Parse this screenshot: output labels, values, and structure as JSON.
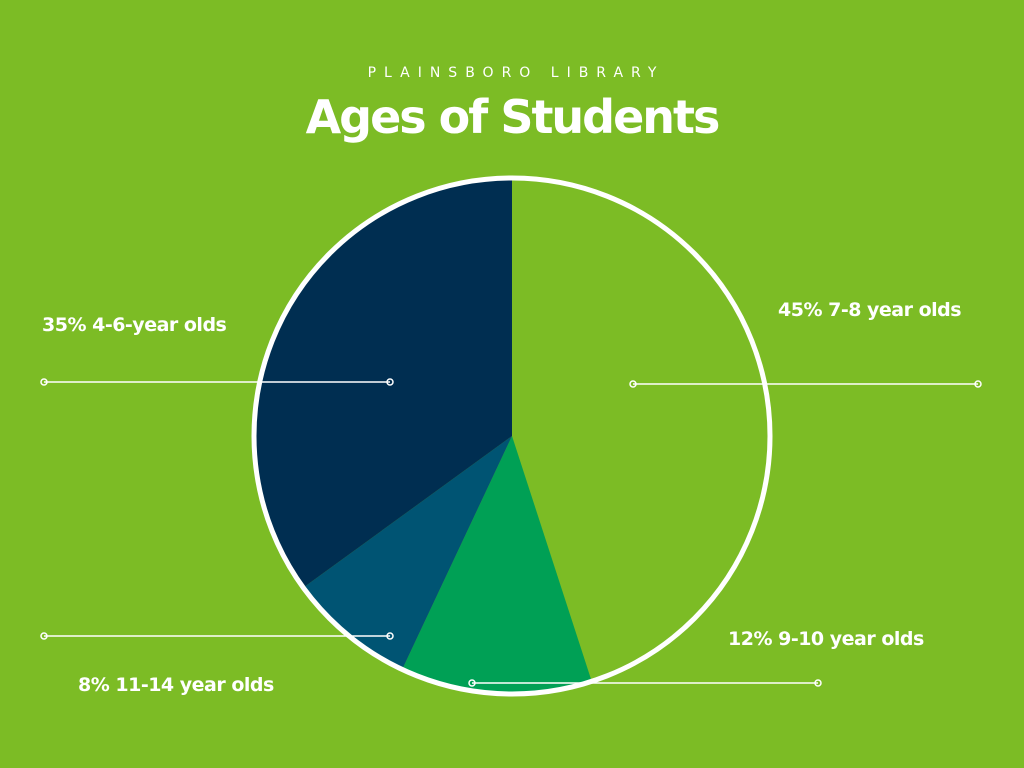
{
  "header": {
    "overline": "PLAINSBORO LIBRARY",
    "title": "Ages of Students"
  },
  "colors": {
    "background": "#7cbc25",
    "outline": "#ffffff",
    "leader": "#ffffff"
  },
  "chart_data": {
    "type": "pie",
    "title": "Ages of Students",
    "start_angle_deg": 0,
    "direction": "clockwise",
    "slices": [
      {
        "label": "45% 7-8 year olds",
        "value": 45,
        "color": "#7cbc25"
      },
      {
        "label": "12% 9-10 year olds",
        "value": 12,
        "color": "#00a055"
      },
      {
        "label": "8% 11-14 year olds",
        "value": 8,
        "color": "#005473"
      },
      {
        "label": "35% 4-6-year olds",
        "value": 35,
        "color": "#002e51"
      }
    ]
  }
}
